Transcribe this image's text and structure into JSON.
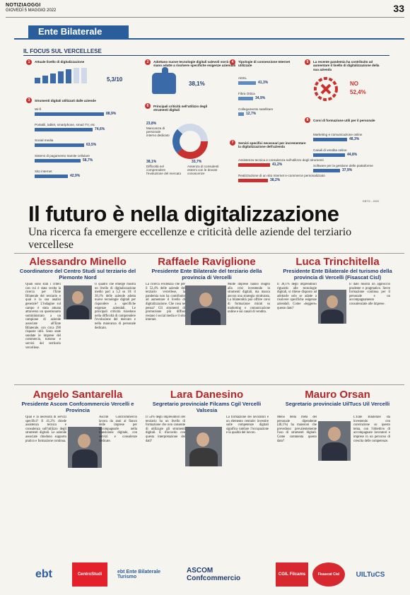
{
  "masthead": {
    "paper": "NOTIZIAOGGI",
    "date": "GIOVEDÌ 5 MAGGIO 2022",
    "page": "33"
  },
  "section": "Ente Bilaterale",
  "info": {
    "title": "IL FOCUS SUL VERCELLESE",
    "q1": {
      "n": "1",
      "text": "Attuale livello di digitalizzazione",
      "score": "5,3/10"
    },
    "q2": {
      "n": "2",
      "text": "Adottano nuove tecnologie digitali valevoli vorrà che siano adatte a risolvere specifiche esigenze aziendali",
      "value": "38,1%"
    },
    "q3": {
      "n": "3",
      "text": "Strumenti digitali utilizzati dalle aziende",
      "items": [
        {
          "label": "Wi-fi",
          "value": "88,9%",
          "pct": 88.9
        },
        {
          "label": "Portatili, tablet, smartphone, smart TV, etc",
          "value": "74,6%",
          "pct": 74.6
        },
        {
          "label": "Social media",
          "value": "63,5%",
          "pct": 63.5
        },
        {
          "label": "Sistemi di pagamento tramite cellulare",
          "value": "58,7%",
          "pct": 58.7
        },
        {
          "label": "Sito internet",
          "value": "42,9%",
          "pct": 42.9
        }
      ]
    },
    "q4": {
      "n": "4",
      "text": "Tipologie di connessione Internet utilizzate",
      "items": [
        {
          "label": "ADSL",
          "value": "41,3%",
          "pct": 41.3
        },
        {
          "label": "Fibra Ottica",
          "value": "34,9%",
          "pct": 34.9
        },
        {
          "label": "Collegamento satellitare",
          "value": "12,7%",
          "pct": 12.7
        }
      ]
    },
    "q5": {
      "n": "5",
      "text": "La recente pandemia ha contribuito ad aumentare il livello di digitalizzazione della sua azienda",
      "no_label": "NO",
      "no_value": "52,4%"
    },
    "q6": {
      "n": "6",
      "text": "Principali criticità nell'utilizzo degli strumenti digitali",
      "a_value": "23,8%",
      "a_label": "Mancanza di personale interno dedicato",
      "b_value": "38,1%",
      "b_label": "Difficoltà nel comprendere l'evoluzione del mercato",
      "c_value": "33,7%",
      "c_label": "Assenza di consulenti esterni con le dovute conoscenze"
    },
    "q7": {
      "n": "7",
      "text": "Servizi specifici necessari per incrementare la digitalizzazione dell'azienda",
      "items": [
        {
          "label": "Assistenza tecnica e consulenza sull'utilizzo degli strumenti",
          "value": "41,2%",
          "pct": 41.2
        },
        {
          "label": "Realizzazione di un sito Internet e-commerce personalizzato",
          "value": "38,2%",
          "pct": 38.2
        }
      ]
    },
    "q8": {
      "n": "8",
      "text": "Corsi di formazione utili per il personale",
      "items": [
        {
          "label": "Marketing e comunicazione online",
          "value": "48,3%",
          "pct": 48.3
        },
        {
          "label": "Canali di vendita online",
          "value": "44,8%",
          "pct": 44.8
        },
        {
          "label": "Software per la gestione delle piattaforme",
          "value": "37,9%",
          "pct": 37.9
        }
      ]
    },
    "source": "EBTG - 2022"
  },
  "headline": "Il futuro è nella digitalizzazione",
  "subheadline": "Una ricerca fa emergere eccellenze e criticità delle aziende del terziario vercellese",
  "people": [
    {
      "name": "Alessandro Minello",
      "role": "Coordinatore del Centro Studi sul terziario del Piemonte Nord"
    },
    {
      "name": "Raffaele Raviglione",
      "role": "Presidente Ente Bilaterale del terziario della provincia di Vercelli"
    },
    {
      "name": "Luca Trinchitella",
      "role": "Presidente Ente Bilaterale del turismo della provincia di Vercelli (Fisascat Cisl)"
    },
    {
      "name": "Angelo Santarella",
      "role": "Presidente Ascom Confcommercio Vercelli e Provincia"
    },
    {
      "name": "Lara Danesino",
      "role": "Segretario provinciale Filcams Cgil Vercelli Valsesia"
    },
    {
      "name": "Mauro Orsan",
      "role": "Segretario provinciale UilTucs Uil Vercelli"
    }
  ],
  "texts": {
    "p1a": "Quali sono stati i criteri con cui è stata svolta la ricerca per l'Ente Bilaterale del terziario e qual è la sua analisi generale? L'indagine sul campo è stata attuata attraverso un questionario somministrato a un campione di aziende associate all'Ente Bilaterale, con circa 290 risposte utili. Sono state sondate le imprese del commercio, turismo e servizi del territorio vercellese.",
    "p1b": "Il quadro che emerge mostra un livello di digitalizzazione medio pari a 5,3 su 10: il 38,1% delle aziende adotta nuove tecnologie digitali per rispondere a specifiche esigenze aziendali. Le principali criticità risiedono nella difficoltà di comprendere l'evoluzione del mercato e nella mancanza di personale dedicato.",
    "p2a": "La ricerca evidenzia che per il 52,4% delle aziende del terziario vercellese, la pandemia non ha contribuito ad aumentare il livello di digitalizzazione. Che cosa ne pensa? Gli strumenti di promozione più diffusi restano i social media e il sito internet.",
    "p2b": "Molte imprese hanno reagito alla crisi investendo in strumenti digitali, ma manca ancora una strategia strutturata. La bilateralità può offrire corsi di formazione mirati su marketing e comunicazione online e sui canali di vendita.",
    "p3a": "Il 38,1% degli imprenditori riguardo alle tecnologie digitali, si ritiene disposto ad adottarle solo se adatte a risolvere specifiche esigenze aziendali. Come «leggere» questo dato?",
    "p3b": "Il dato mostra un approccio prudente e pragmatico. Serve formazione continua per il personale e un accompagnamento consulenziale alle imprese.",
    "p4a": "Qual è la necessità di servizi specifici? Il 41,2% chiede assistenza tecnica e consulenza sull'utilizzo degli strumenti digitali. Le aziende associate chiedono supporto pratico e formazione continua.",
    "p4b": "Ascom Confcommercio lavora da anni al fianco delle imprese per accompagnarle nella transizione digitale, con servizi e consulenze dedicate.",
    "p5a": "Il 54% degli imprenditori del terziario ha un livello di formazione che non consente di utilizzare gli strumenti digitali. È d'accordo con questa interpretazione dei dati?",
    "p5b": "La formazione dei lavoratori è un elemento centrale: investire sulle competenze digitali significa tutelare l'occupazione e la qualità del lavoro.",
    "p6a": "Meno della metà del personale dipendente (40,1%) ha mansioni che prevedono prevalentemente l'uso di strumenti digitali. Come commenta questo dato?",
    "p6b": "L'Ente Bilaterale sta investendo con convinzione su questo tema, con l'obiettivo di accompagnare lavoratori e imprese in un percorso di crescita delle competenze."
  },
  "logos": [
    "ebt",
    "CentroStudi",
    "ebt Ente Bilaterale Turismo",
    "ASCOM Confcommercio",
    "CGIL Filcams",
    "Fisascat Cisl",
    "UILTuCS"
  ]
}
